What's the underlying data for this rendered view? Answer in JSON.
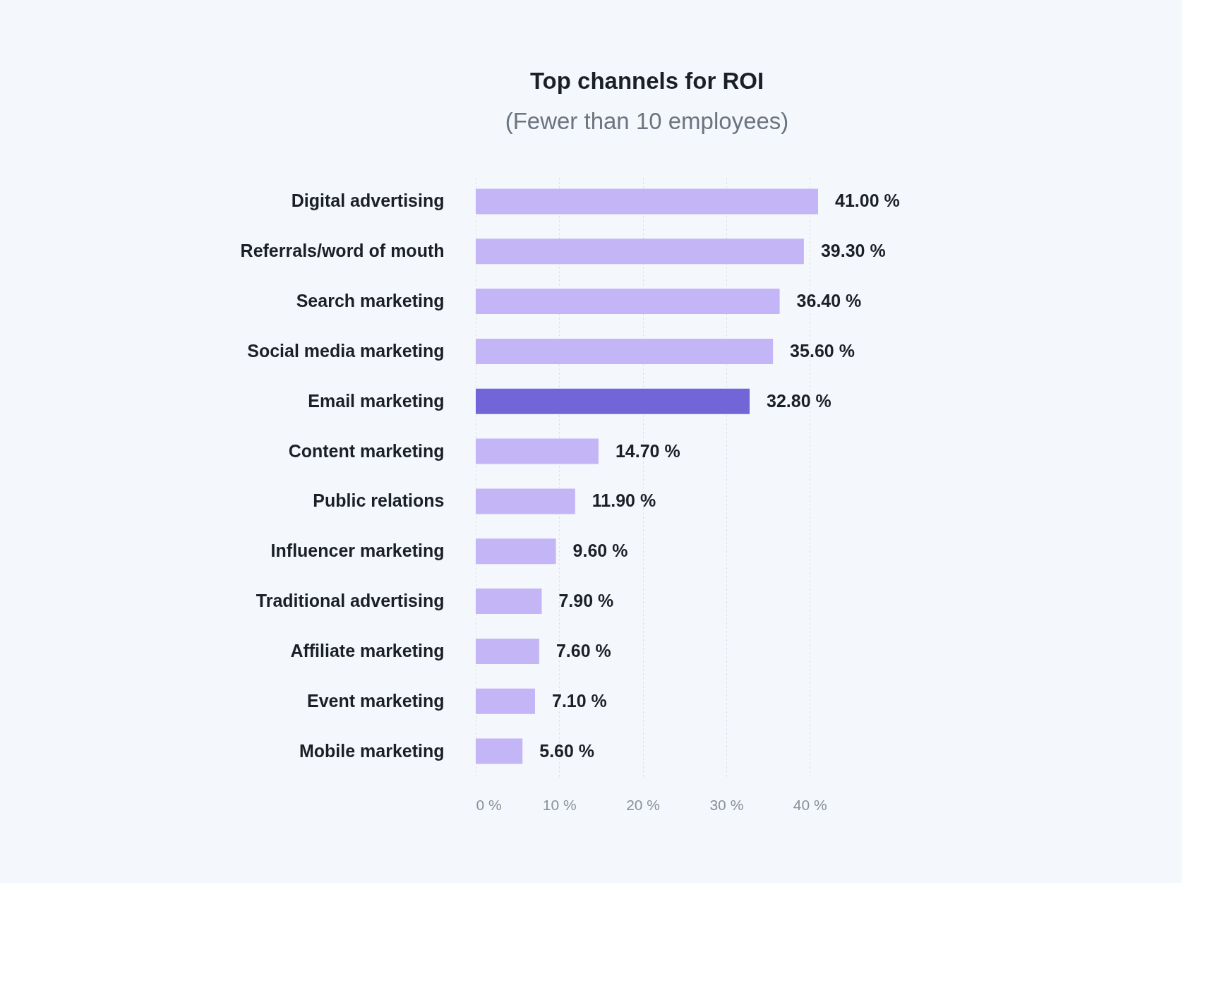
{
  "chart_data": {
    "type": "bar",
    "orientation": "horizontal",
    "title": "Top channels for ROI",
    "subtitle": "(Fewer than 10 employees)",
    "categories": [
      "Digital advertising",
      "Referrals/word of mouth",
      "Search marketing",
      "Social media marketing",
      "Email marketing",
      "Content marketing",
      "Public relations",
      "Influencer marketing",
      "Traditional advertising",
      "Affiliate marketing",
      "Event marketing",
      "Mobile marketing"
    ],
    "values": [
      41.0,
      39.3,
      36.4,
      35.6,
      32.8,
      14.7,
      11.9,
      9.6,
      7.9,
      7.6,
      7.1,
      5.6
    ],
    "colors": [
      "#c4b5f7",
      "#c4b5f7",
      "#c4b5f7",
      "#c4b5f7",
      "#7165d8",
      "#c4b5f7",
      "#c4b5f7",
      "#c4b5f7",
      "#c4b5f7",
      "#c4b5f7",
      "#c4b5f7",
      "#c4b5f7"
    ],
    "value_labels": [
      "41.00 %",
      "39.30 %",
      "36.40 %",
      "35.60 %",
      "32.80 %",
      "14.70 %",
      "11.90 %",
      "9.60 %",
      "7.90 %",
      "7.60 %",
      "7.10 %",
      "5.60 %"
    ],
    "xlim": [
      0,
      41
    ],
    "xticks": [
      {
        "value": 0,
        "label": "0 %"
      },
      {
        "value": 10,
        "label": "10 %"
      },
      {
        "value": 20,
        "label": "20 %"
      },
      {
        "value": 30,
        "label": "30 %"
      },
      {
        "value": 40,
        "label": "40 %"
      }
    ],
    "grid": "x",
    "legend": false
  }
}
